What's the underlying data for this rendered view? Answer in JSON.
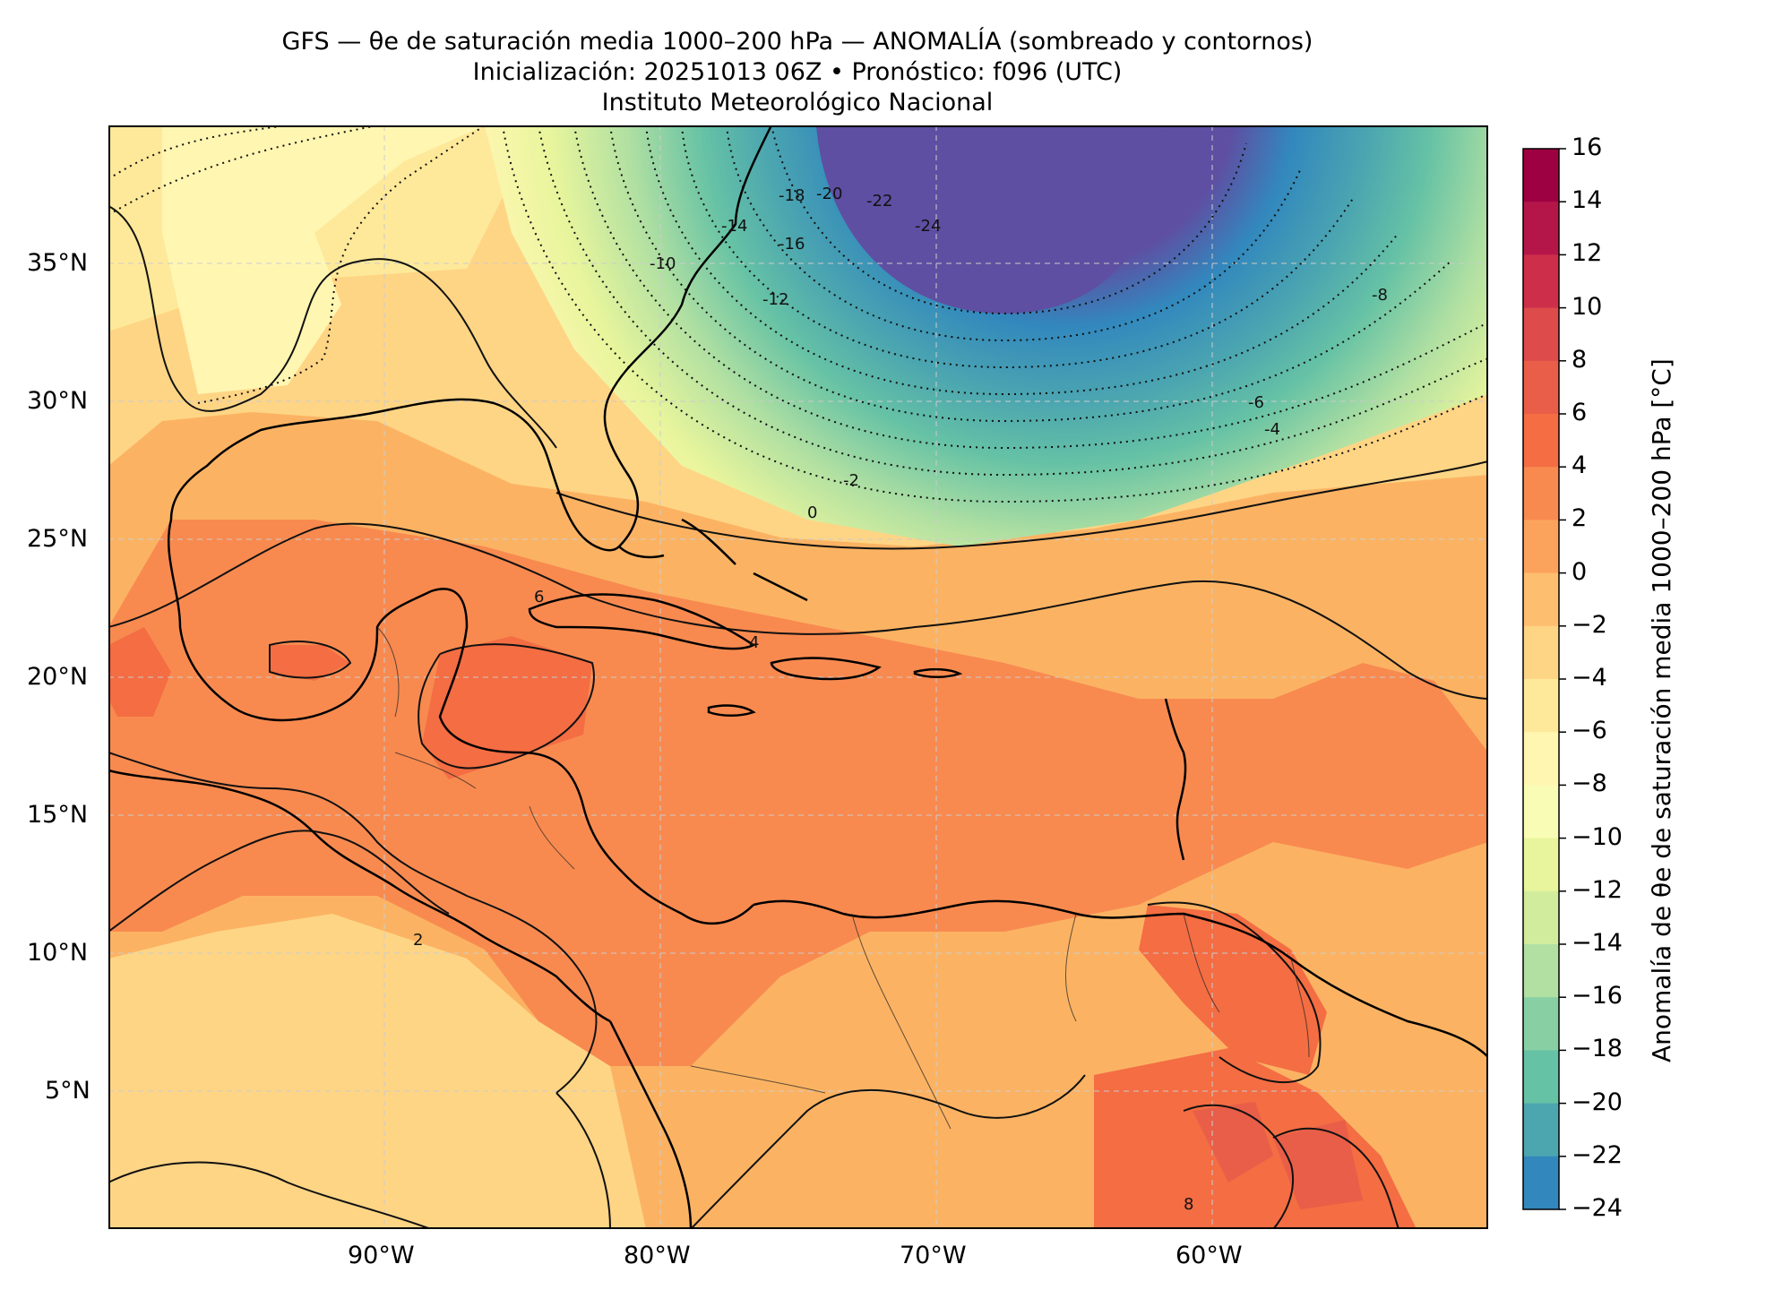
{
  "title": {
    "line1": "GFS — θe de saturación media 1000–200 hPa — ANOMALÍA (sombreado y contornos)",
    "line2": "Inicialización: 20251013 06Z   •   Pronóstico: f096 (UTC)",
    "line3": "Instituto Meteorológico Nacional"
  },
  "map": {
    "lon_range": [
      -100,
      -50
    ],
    "lat_range": [
      0,
      40
    ],
    "lon_ticks": [
      "90°W",
      "80°W",
      "70°W",
      "60°W"
    ],
    "lat_ticks": [
      "35°N",
      "30°N",
      "25°N",
      "20°N",
      "15°N",
      "10°N",
      "5°N"
    ],
    "grid": true
  },
  "colorbar": {
    "label": "Anomalía de θe de saturación media 1000–200 hPa [°C]",
    "ticks": [
      "16",
      "14",
      "12",
      "10",
      "8",
      "6",
      "4",
      "2",
      "0",
      "−2",
      "−4",
      "−6",
      "−8",
      "−10",
      "−12",
      "−14",
      "−16",
      "−18",
      "−20",
      "−22",
      "−24"
    ],
    "colors": [
      "#9e0142",
      "#b5164a",
      "#cd2f4a",
      "#dd4b4b",
      "#e85e48",
      "#f46d43",
      "#f88a50",
      "#fba35d",
      "#fdbe6f",
      "#fed585",
      "#fee99a",
      "#fff6b2",
      "#f9fcb4",
      "#e8f59c",
      "#d1ec9c",
      "#b1e0a2",
      "#88cfa4",
      "#66c2a5",
      "#4ca6b0",
      "#3288bd",
      "#4066b0",
      "#5e4fa2"
    ]
  },
  "contour_labels": [
    "-24",
    "-22",
    "-20",
    "-18",
    "-16",
    "-14",
    "-12",
    "-10",
    "-8",
    "-6",
    "-4",
    "-2",
    "0",
    "2",
    "4",
    "6",
    "8"
  ]
}
